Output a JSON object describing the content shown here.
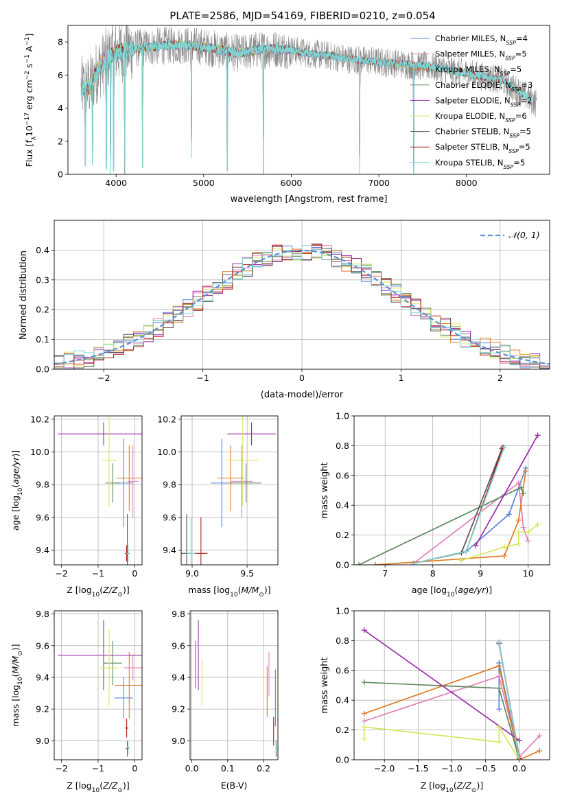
{
  "figure_title": "PLATE=2586, MJD=54169, FIBERID=0210, z=0.054",
  "series": [
    {
      "name": "Chabrier MILES",
      "nssp": "4",
      "color": "#5b84d6"
    },
    {
      "name": "Salpeter MILES",
      "nssp": "5",
      "color": "#e07fb8"
    },
    {
      "name": "Kroupa MILES",
      "nssp": "5",
      "color": "#e07a1f"
    },
    {
      "name": "Chabrier ELODIE",
      "nssp": "3",
      "color": "#5a8a5a"
    },
    {
      "name": "Salpeter ELODIE",
      "nssp": "2",
      "color": "#9a2bab"
    },
    {
      "name": "Kroupa ELODIE",
      "nssp": "6",
      "color": "#d6e65a"
    },
    {
      "name": "Chabrier STELIB",
      "nssp": "5",
      "color": "#555555"
    },
    {
      "name": "Salpeter STELIB",
      "nssp": "5",
      "color": "#b01a1a"
    },
    {
      "name": "Kroupa STELIB",
      "nssp": "5",
      "color": "#7fd6d6"
    }
  ],
  "chart_data": [
    {
      "id": "spectrum",
      "type": "line",
      "xlabel": "wavelength [Angstrom, rest frame]",
      "ylabel": "Flux [f_λ 10^-17 erg cm^-2 s^-1 A^-1]",
      "xlim": [
        3450,
        8950
      ],
      "ylim": [
        0,
        9
      ],
      "xticks": [
        4000,
        5000,
        6000,
        7000,
        8000
      ],
      "yticks": [
        0,
        2,
        4,
        6,
        8
      ],
      "data_color": "#888888",
      "model_color": "#7fd6d6",
      "continuum": [
        [
          3600,
          5.2
        ],
        [
          3700,
          5.3
        ],
        [
          3800,
          6.4
        ],
        [
          3900,
          7.0
        ],
        [
          4000,
          7.4
        ],
        [
          4200,
          7.6
        ],
        [
          4400,
          7.7
        ],
        [
          4600,
          7.8
        ],
        [
          4800,
          7.8
        ],
        [
          5000,
          7.7
        ],
        [
          5200,
          7.5
        ],
        [
          5400,
          7.3
        ],
        [
          5600,
          7.5
        ],
        [
          5800,
          7.6
        ],
        [
          6000,
          7.5
        ],
        [
          6200,
          7.3
        ],
        [
          6400,
          7.2
        ],
        [
          6600,
          7.0
        ],
        [
          6800,
          6.9
        ],
        [
          7000,
          6.8
        ],
        [
          7200,
          6.7
        ],
        [
          7400,
          6.6
        ],
        [
          7600,
          6.5
        ],
        [
          7800,
          6.3
        ],
        [
          8000,
          6.1
        ],
        [
          8200,
          5.9
        ],
        [
          8400,
          5.7
        ],
        [
          8600,
          5.0
        ],
        [
          8800,
          4.3
        ]
      ],
      "dips": [
        [
          3650,
          0.5
        ],
        [
          3730,
          0.6
        ],
        [
          3890,
          0.3
        ],
        [
          3935,
          0.0
        ],
        [
          3970,
          0.2
        ],
        [
          4100,
          0.0
        ],
        [
          4300,
          0.4
        ],
        [
          4860,
          1.0
        ],
        [
          5270,
          0.2
        ],
        [
          5680,
          0.0
        ],
        [
          6780,
          0.0
        ],
        [
          7400,
          0.0
        ]
      ],
      "legend": "upper right"
    },
    {
      "id": "residuals",
      "type": "line",
      "xlabel": "(data-model)/error",
      "ylabel": "Normed distribution",
      "xlim": [
        -2.5,
        2.5
      ],
      "ylim": [
        0,
        0.5
      ],
      "xticks": [
        -2,
        -1,
        0,
        1,
        2
      ],
      "yticks": [
        0.0,
        0.1,
        0.2,
        0.3,
        0.4
      ],
      "gaussian_label": "𝒩(0, 1)",
      "gaussian_color": "#5b8fd6",
      "bin_width": 0.1,
      "legend": "upper right"
    },
    {
      "id": "age-vs-Z",
      "type": "scatter",
      "xlabel": "Z [log10(Z/Z⊙)]",
      "ylabel": "age [log10(age/yr)]",
      "xlim": [
        -2.2,
        0.2
      ],
      "ylim": [
        9.31,
        10.22
      ],
      "xticks": [
        -2,
        -1,
        0
      ],
      "yticks": [
        9.4,
        9.6,
        9.8,
        10.0,
        10.2
      ],
      "points": [
        {
          "x": -0.3,
          "y": 9.81,
          "xerr": 0.25,
          "yerr": 0.27
        },
        {
          "x": -0.05,
          "y": 9.82,
          "xerr": 0.15,
          "yerr": 0.22
        },
        {
          "x": -0.15,
          "y": 9.84,
          "xerr": 0.35,
          "yerr": 0.2
        },
        {
          "x": -0.6,
          "y": 9.81,
          "xerr": 0.2,
          "yerr": 0.12
        },
        {
          "x": -0.85,
          "y": 10.11,
          "xerr": 1.25,
          "yerr": 0.07
        },
        {
          "x": -0.7,
          "y": 9.95,
          "xerr": 0.2,
          "yerr": 0.28
        },
        {
          "x": -0.2,
          "y": 9.38,
          "xerr": 0.05,
          "yerr": 0.24
        },
        {
          "x": -0.22,
          "y": 9.38,
          "xerr": 0.05,
          "yerr": 0.05
        },
        {
          "x": -0.18,
          "y": 9.38,
          "xerr": 0.05,
          "yerr": 0.05
        }
      ]
    },
    {
      "id": "age-vs-mass",
      "type": "scatter",
      "xlabel": "mass [log10(M/M⊙)]",
      "ylabel": "",
      "xlim": [
        8.9,
        9.78
      ],
      "ylim": [
        9.31,
        10.22
      ],
      "xticks": [
        9.0,
        9.5
      ],
      "yticks": [
        9.4,
        9.6,
        9.8,
        10.0,
        10.2
      ],
      "points": [
        {
          "x": 9.27,
          "y": 9.81,
          "xerr": 0.1,
          "yerr": 0.27
        },
        {
          "x": 9.45,
          "y": 9.82,
          "xerr": 0.1,
          "yerr": 0.22
        },
        {
          "x": 9.35,
          "y": 9.84,
          "xerr": 0.12,
          "yerr": 0.2
        },
        {
          "x": 9.49,
          "y": 9.81,
          "xerr": 0.14,
          "yerr": 0.12
        },
        {
          "x": 9.54,
          "y": 10.11,
          "xerr": 0.22,
          "yerr": 0.07
        },
        {
          "x": 9.46,
          "y": 9.95,
          "xerr": 0.15,
          "yerr": 0.28
        },
        {
          "x": 8.95,
          "y": 9.38,
          "xerr": 0.05,
          "yerr": 0.24
        },
        {
          "x": 9.08,
          "y": 9.38,
          "xerr": 0.06,
          "yerr": 0.22
        },
        {
          "x": 8.99,
          "y": 9.38,
          "xerr": 0.04,
          "yerr": 0.22
        }
      ]
    },
    {
      "id": "weight-vs-age",
      "type": "line",
      "xlabel": "age [log10(age/yr)]",
      "ylabel": "mass weight",
      "xlim": [
        6.35,
        10.45
      ],
      "ylim": [
        0,
        1
      ],
      "xticks": [
        7,
        8,
        9,
        10
      ],
      "yticks": [
        0.0,
        0.2,
        0.4,
        0.6,
        0.8,
        1.0
      ],
      "lines": [
        [
          [
            7.6,
            0.01
          ],
          [
            8.7,
            0.09
          ],
          [
            9.6,
            0.34
          ],
          [
            9.95,
            0.65
          ]
        ],
        [
          [
            7.6,
            0.01
          ],
          [
            9.8,
            0.55
          ],
          [
            9.9,
            0.25
          ],
          [
            10.0,
            0.16
          ]
        ],
        [
          [
            6.8,
            0.0
          ],
          [
            9.5,
            0.06
          ],
          [
            9.8,
            0.3
          ],
          [
            9.95,
            0.63
          ]
        ],
        [
          [
            6.45,
            0.0
          ],
          [
            9.85,
            0.52
          ],
          [
            9.9,
            0.48
          ]
        ],
        [
          [
            8.9,
            0.13
          ],
          [
            10.2,
            0.87
          ]
        ],
        [
          [
            8.6,
            0.03
          ],
          [
            9.5,
            0.12
          ],
          [
            9.8,
            0.14
          ],
          [
            9.8,
            0.22
          ],
          [
            10.0,
            0.22
          ],
          [
            10.2,
            0.27
          ]
        ],
        [
          [
            7.6,
            0.01
          ],
          [
            8.6,
            0.08
          ],
          [
            9.45,
            0.78
          ]
        ],
        [
          [
            7.6,
            0.01
          ],
          [
            8.7,
            0.09
          ],
          [
            9.47,
            0.79
          ]
        ],
        [
          [
            7.6,
            0.01
          ],
          [
            8.7,
            0.09
          ],
          [
            9.5,
            0.79
          ]
        ]
      ]
    },
    {
      "id": "mass-vs-Z",
      "type": "scatter",
      "xlabel": "Z [log10(Z/Z⊙)]",
      "ylabel": "mass [log10(M/M⊙)]",
      "xlim": [
        -2.2,
        0.2
      ],
      "ylim": [
        8.88,
        9.82
      ],
      "xticks": [
        -2,
        -1,
        0
      ],
      "yticks": [
        9.0,
        9.2,
        9.4,
        9.6,
        9.8
      ],
      "points": [
        {
          "x": -0.3,
          "y": 9.27,
          "xerr": 0.25,
          "yerr": 0.13
        },
        {
          "x": -0.05,
          "y": 9.46,
          "xerr": 0.25,
          "yerr": 0.08
        },
        {
          "x": -0.15,
          "y": 9.35,
          "xerr": 0.4,
          "yerr": 0.21
        },
        {
          "x": -0.6,
          "y": 9.49,
          "xerr": 0.25,
          "yerr": 0.14
        },
        {
          "x": -0.85,
          "y": 9.54,
          "xerr": 1.25,
          "yerr": 0.22
        },
        {
          "x": -0.7,
          "y": 9.46,
          "xerr": 0.25,
          "yerr": 0.24
        },
        {
          "x": -0.2,
          "y": 8.95,
          "xerr": 0.05,
          "yerr": 0.05
        },
        {
          "x": -0.22,
          "y": 9.08,
          "xerr": 0.05,
          "yerr": 0.06
        },
        {
          "x": -0.18,
          "y": 8.96,
          "xerr": 0.05,
          "yerr": 0.04
        }
      ]
    },
    {
      "id": "mass-vs-ebv",
      "type": "scatter",
      "xlabel": "E(B-V)",
      "ylabel": "",
      "xlim": [
        -0.005,
        0.24
      ],
      "ylim": [
        8.88,
        9.82
      ],
      "xticks": [
        0.0,
        0.1,
        0.2
      ],
      "yticks": [
        9.0,
        9.2,
        9.4,
        9.6,
        9.8
      ],
      "points": [
        {
          "x": 0.233,
          "y": 9.27,
          "xerr": 0,
          "yerr": 0.18
        },
        {
          "x": 0.215,
          "y": 9.42,
          "xerr": 0,
          "yerr": 0.14
        },
        {
          "x": 0.21,
          "y": 9.31,
          "xerr": 0,
          "yerr": 0.16
        },
        {
          "x": 0.01,
          "y": 9.48,
          "xerr": 0,
          "yerr": 0.15
        },
        {
          "x": 0.018,
          "y": 9.54,
          "xerr": 0,
          "yerr": 0.22
        },
        {
          "x": 0.028,
          "y": 9.37,
          "xerr": 0,
          "yerr": 0.15
        },
        {
          "x": 0.235,
          "y": 8.95,
          "xerr": 0,
          "yerr": 0.05
        },
        {
          "x": 0.228,
          "y": 9.06,
          "xerr": 0,
          "yerr": 0.09
        },
        {
          "x": 0.236,
          "y": 8.96,
          "xerr": 0,
          "yerr": 0.04
        }
      ]
    },
    {
      "id": "weight-vs-Z",
      "type": "line",
      "xlabel": "Z [log10(Z/Z⊙)]",
      "ylabel": "mass weight",
      "xlim": [
        -2.45,
        0.45
      ],
      "ylim": [
        0,
        1
      ],
      "xticks": [
        -2.0,
        -1.5,
        -1.0,
        -0.5,
        0.0
      ],
      "yticks": [
        0.0,
        0.2,
        0.4,
        0.6,
        0.8,
        1.0
      ],
      "lines": [
        [
          [
            -0.3,
            0.34
          ],
          [
            -0.3,
            0.65
          ],
          [
            0.0,
            0.01
          ]
        ],
        [
          [
            -2.3,
            0.26
          ],
          [
            -0.3,
            0.56
          ],
          [
            0.0,
            0.02
          ],
          [
            0.3,
            0.16
          ]
        ],
        [
          [
            -2.3,
            0.31
          ],
          [
            -0.3,
            0.63
          ],
          [
            0.0,
            0.0
          ],
          [
            0.3,
            0.06
          ]
        ],
        [
          [
            -2.3,
            0.52
          ],
          [
            -0.3,
            0.48
          ],
          [
            0.0,
            0.0
          ]
        ],
        [
          [
            -2.3,
            0.87
          ],
          [
            0.0,
            0.13
          ]
        ],
        [
          [
            -2.3,
            0.14
          ],
          [
            -2.3,
            0.22
          ],
          [
            -0.3,
            0.12
          ],
          [
            -0.3,
            0.22
          ],
          [
            0.0,
            0.0
          ]
        ],
        [
          [
            -0.3,
            0.78
          ],
          [
            0.0,
            0.01
          ]
        ],
        [
          [
            -0.3,
            0.79
          ],
          [
            0.0,
            0.01
          ]
        ],
        [
          [
            -0.3,
            0.79
          ],
          [
            0.0,
            0.0
          ]
        ]
      ]
    }
  ]
}
